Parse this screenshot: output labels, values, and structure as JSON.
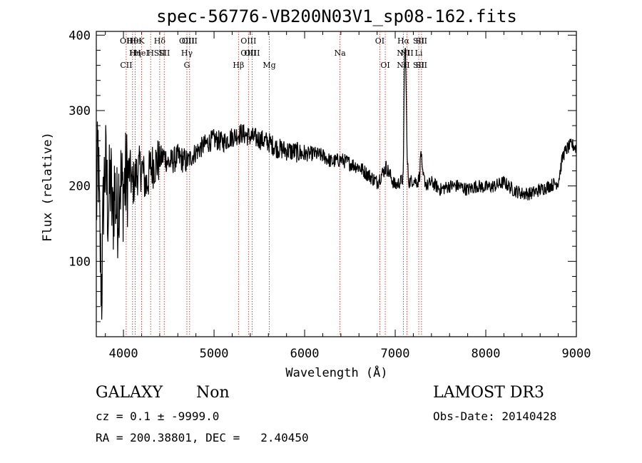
{
  "chart_data": {
    "type": "line",
    "title": "spec-56776-VB200N03V1_sp08-162.fits",
    "xlabel": "Wavelength (Å)",
    "ylabel": "Flux (relative)",
    "xlim": [
      3700,
      9000
    ],
    "ylim": [
      0,
      405
    ],
    "x_ticks": [
      4000,
      5000,
      6000,
      7000,
      8000,
      9000
    ],
    "y_ticks": [
      100,
      200,
      300,
      400
    ],
    "series": [
      {
        "name": "flux",
        "anchors": [
          [
            3700,
            165
          ],
          [
            3720,
            250
          ],
          [
            3740,
            120
          ],
          [
            3760,
            60
          ],
          [
            3780,
            190
          ],
          [
            3800,
            230
          ],
          [
            3830,
            170
          ],
          [
            3860,
            210
          ],
          [
            3880,
            150
          ],
          [
            3900,
            200
          ],
          [
            3930,
            160
          ],
          [
            3960,
            215
          ],
          [
            3990,
            190
          ],
          [
            4030,
            210
          ],
          [
            4070,
            220
          ],
          [
            4100,
            200
          ],
          [
            4150,
            218
          ],
          [
            4200,
            225
          ],
          [
            4250,
            200
          ],
          [
            4300,
            225
          ],
          [
            4350,
            230
          ],
          [
            4400,
            235
          ],
          [
            4450,
            240
          ],
          [
            4500,
            230
          ],
          [
            4600,
            238
          ],
          [
            4700,
            232
          ],
          [
            4800,
            245
          ],
          [
            4900,
            255
          ],
          [
            5000,
            262
          ],
          [
            5100,
            258
          ],
          [
            5200,
            265
          ],
          [
            5300,
            270
          ],
          [
            5400,
            265
          ],
          [
            5500,
            262
          ],
          [
            5600,
            258
          ],
          [
            5700,
            250
          ],
          [
            5800,
            247
          ],
          [
            5900,
            245
          ],
          [
            6000,
            242
          ],
          [
            6100,
            243
          ],
          [
            6200,
            240
          ],
          [
            6300,
            232
          ],
          [
            6400,
            235
          ],
          [
            6500,
            230
          ],
          [
            6600,
            225
          ],
          [
            6700,
            215
          ],
          [
            6800,
            205
          ],
          [
            6900,
            225
          ],
          [
            7000,
            200
          ],
          [
            7050,
            205
          ],
          [
            7090,
            210
          ],
          [
            7100,
            350
          ],
          [
            7110,
            390
          ],
          [
            7120,
            340
          ],
          [
            7130,
            240
          ],
          [
            7150,
            205
          ],
          [
            7200,
            208
          ],
          [
            7250,
            205
          ],
          [
            7270,
            215
          ],
          [
            7285,
            250
          ],
          [
            7300,
            215
          ],
          [
            7350,
            200
          ],
          [
            7400,
            205
          ],
          [
            7500,
            195
          ],
          [
            7600,
            200
          ],
          [
            7700,
            200
          ],
          [
            7800,
            195
          ],
          [
            7900,
            200
          ],
          [
            8000,
            198
          ],
          [
            8100,
            200
          ],
          [
            8200,
            205
          ],
          [
            8300,
            195
          ],
          [
            8400,
            190
          ],
          [
            8500,
            190
          ],
          [
            8600,
            195
          ],
          [
            8700,
            200
          ],
          [
            8800,
            205
          ],
          [
            8850,
            240
          ],
          [
            8900,
            250
          ],
          [
            8950,
            255
          ],
          [
            9000,
            250
          ]
        ]
      }
    ],
    "lines": [
      {
        "x": 4030,
        "top": "OII",
        "bottom": "CII"
      },
      {
        "x": 4100,
        "top": "Hθ",
        "mid": "H"
      },
      {
        "x": 4130,
        "top": "He",
        "mid": "Hη"
      },
      {
        "x": 4200,
        "top": "K",
        "mid": "HeI"
      },
      {
        "x": 4300,
        "mid": "H"
      },
      {
        "x": 4400,
        "top": "Hδ",
        "mid": "SII"
      },
      {
        "x": 4450,
        "mid": "SII"
      },
      {
        "x": 4700,
        "top": "OIII",
        "mid": "Hγ",
        "bottom": "G"
      },
      {
        "x": 4730,
        "top": "OIII"
      },
      {
        "x": 5270,
        "bottom": "Hβ"
      },
      {
        "x": 5380,
        "top": "OIII",
        "mid": "OIII"
      },
      {
        "x": 5420,
        "mid": "OIII"
      },
      {
        "x": 5610,
        "bottom": "Mg"
      },
      {
        "x": 6390,
        "mid": "Na"
      },
      {
        "x": 6830,
        "top": "OI"
      },
      {
        "x": 6890,
        "bottom": "OI"
      },
      {
        "x": 7090,
        "top": "Hα",
        "mid": "NII",
        "bottom": "NII"
      },
      {
        "x": 7130,
        "mid": "NII"
      },
      {
        "x": 7260,
        "top": "SII",
        "mid": "Li",
        "bottom": "SII"
      },
      {
        "x": 7290,
        "top": "SII",
        "bottom": "SII"
      }
    ]
  },
  "info": {
    "object_class": "GALAXY",
    "subclass": "Non",
    "survey": "LAMOST DR3",
    "cz": "cz = 0.1 ± -9999.0",
    "obs_date": "Obs-Date: 20140428",
    "coords": "RA = 200.38801, DEC =   2.40450"
  }
}
